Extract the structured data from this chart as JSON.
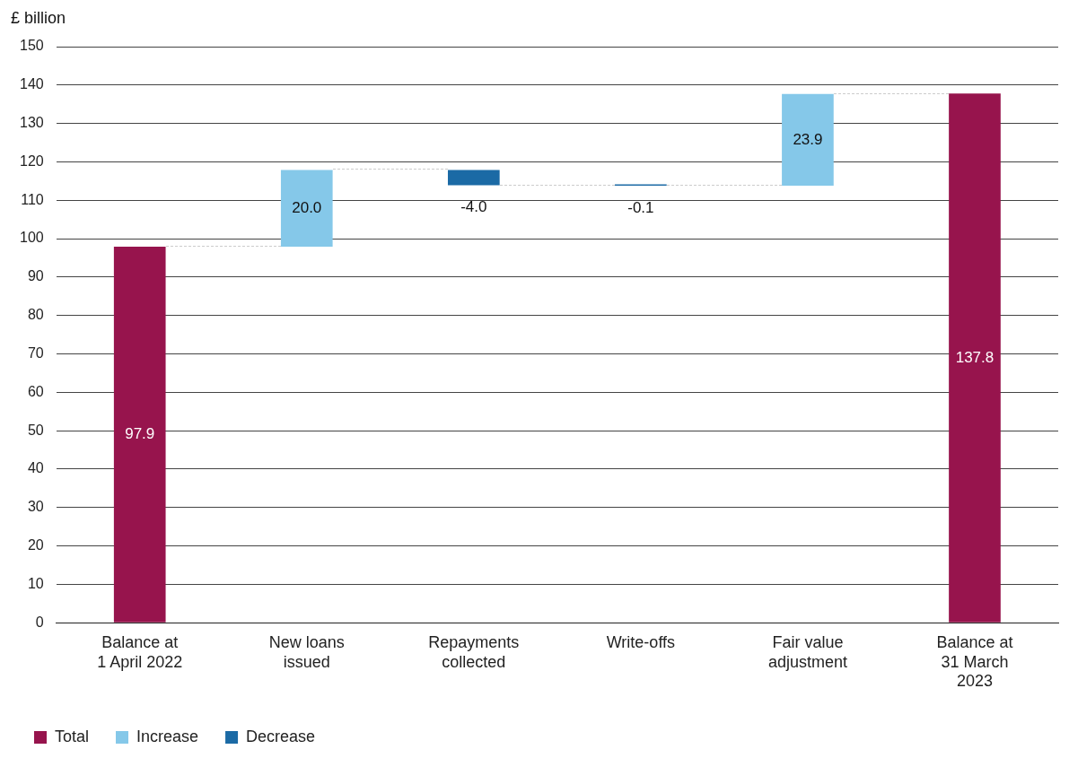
{
  "chart_data": {
    "type": "bar",
    "ylabel": "£ billion",
    "categories": [
      "Balance at\n1 April 2022",
      "New loans\nissued",
      "Repayments\ncollected",
      "Write-offs",
      "Fair value\nadjustment",
      "Balance at\n31 March\n2023"
    ],
    "series": [
      {
        "name": "Total",
        "color": "#97144d",
        "values": [
          97.9,
          null,
          null,
          null,
          null,
          137.8
        ],
        "value_labels": [
          "97.9",
          null,
          null,
          null,
          null,
          "137.8"
        ],
        "base": [
          0,
          null,
          null,
          null,
          null,
          0
        ]
      },
      {
        "name": "Increase",
        "color": "#85c8e9",
        "values": [
          null,
          20.0,
          null,
          null,
          23.9,
          null
        ],
        "value_labels": [
          null,
          "20.0",
          null,
          null,
          "23.9",
          null
        ],
        "base": [
          null,
          97.9,
          null,
          null,
          113.8,
          null
        ]
      },
      {
        "name": "Decrease",
        "color": "#1b6aa5",
        "values": [
          null,
          null,
          -4.0,
          -0.1,
          null,
          null
        ],
        "value_labels": [
          null,
          null,
          "-4.0",
          "-0.1",
          null,
          null
        ],
        "base": [
          null,
          null,
          117.9,
          113.9,
          null,
          null
        ]
      }
    ],
    "ylim": [
      0,
      150
    ],
    "yticks": [
      0,
      10,
      20,
      30,
      40,
      50,
      60,
      70,
      80,
      90,
      100,
      110,
      120,
      130,
      140,
      150
    ],
    "grid": "y",
    "legend": "bottom left"
  }
}
